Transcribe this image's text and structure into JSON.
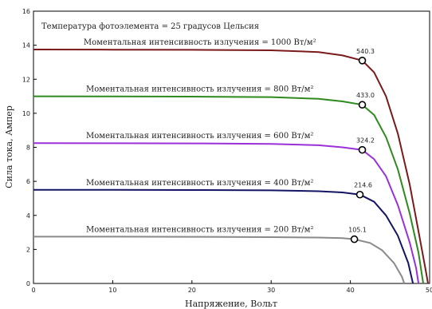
{
  "chart_data": {
    "type": "line",
    "xlabel": "Напряжение, Вольт",
    "ylabel": "Сила тока, Ампер",
    "xlim": [
      0,
      50
    ],
    "ylim": [
      0,
      16
    ],
    "xticks": [
      0,
      10,
      20,
      30,
      40,
      50
    ],
    "yticks": [
      0,
      2,
      4,
      6,
      8,
      10,
      12,
      14,
      16
    ],
    "grid": false,
    "annotation": "Температура фотоэлемента = 25 градусов Цельсия",
    "series": [
      {
        "name": "Моментальная интенсивность излучения = 1000 Вт/м²",
        "color": "#7a1a1a",
        "points": [
          [
            0,
            13.75
          ],
          [
            10,
            13.74
          ],
          [
            20,
            13.73
          ],
          [
            30,
            13.7
          ],
          [
            36,
            13.6
          ],
          [
            39,
            13.4
          ],
          [
            41.5,
            13.1
          ],
          [
            43,
            12.4
          ],
          [
            44.5,
            11.0
          ],
          [
            46,
            8.8
          ],
          [
            47.5,
            5.8
          ],
          [
            48.7,
            2.8
          ],
          [
            49.5,
            0.8
          ],
          [
            49.8,
            0
          ]
        ],
        "mpp": {
          "x": 41.5,
          "y": 13.1,
          "label": "540.3"
        }
      },
      {
        "name": "Моментальная интенсивность излучения = 800 Вт/м²",
        "color": "#2e8a1e",
        "points": [
          [
            0,
            11.0
          ],
          [
            10,
            10.99
          ],
          [
            20,
            10.98
          ],
          [
            30,
            10.95
          ],
          [
            36,
            10.85
          ],
          [
            39,
            10.7
          ],
          [
            41.5,
            10.5
          ],
          [
            43,
            9.9
          ],
          [
            44.5,
            8.6
          ],
          [
            46,
            6.7
          ],
          [
            47.5,
            4.1
          ],
          [
            48.6,
            1.8
          ],
          [
            49.2,
            0
          ]
        ],
        "mpp": {
          "x": 41.5,
          "y": 10.5,
          "label": "433.0"
        }
      },
      {
        "name": "Моментальная интенсивность излучения = 600 Вт/м²",
        "color": "#9b30d9",
        "points": [
          [
            0,
            8.25
          ],
          [
            10,
            8.24
          ],
          [
            20,
            8.23
          ],
          [
            30,
            8.2
          ],
          [
            36,
            8.12
          ],
          [
            39,
            8.0
          ],
          [
            41.5,
            7.85
          ],
          [
            43,
            7.3
          ],
          [
            44.5,
            6.3
          ],
          [
            46,
            4.6
          ],
          [
            47.5,
            2.4
          ],
          [
            48.3,
            0.9
          ],
          [
            48.6,
            0
          ]
        ],
        "mpp": {
          "x": 41.5,
          "y": 7.85,
          "label": "324.2"
        }
      },
      {
        "name": "Моментальная интенсивность излучения = 400 Вт/м²",
        "color": "#141464",
        "points": [
          [
            0,
            5.5
          ],
          [
            10,
            5.5
          ],
          [
            20,
            5.49
          ],
          [
            30,
            5.47
          ],
          [
            36,
            5.42
          ],
          [
            39,
            5.35
          ],
          [
            41.2,
            5.22
          ],
          [
            43,
            4.8
          ],
          [
            44.5,
            4.0
          ],
          [
            46,
            2.8
          ],
          [
            47.3,
            1.2
          ],
          [
            47.9,
            0
          ]
        ],
        "mpp": {
          "x": 41.2,
          "y": 5.22,
          "label": "214.6"
        }
      },
      {
        "name": "Моментальная интенсивность излучения = 200 Вт/м²",
        "color": "#8a8a8a",
        "points": [
          [
            0,
            2.75
          ],
          [
            10,
            2.75
          ],
          [
            20,
            2.74
          ],
          [
            30,
            2.72
          ],
          [
            36,
            2.7
          ],
          [
            39,
            2.66
          ],
          [
            40.5,
            2.6
          ],
          [
            42.5,
            2.38
          ],
          [
            44,
            1.95
          ],
          [
            45.5,
            1.2
          ],
          [
            46.5,
            0.4
          ],
          [
            46.8,
            0
          ]
        ],
        "mpp": {
          "x": 40.5,
          "y": 2.6,
          "label": "105.1"
        }
      }
    ]
  }
}
